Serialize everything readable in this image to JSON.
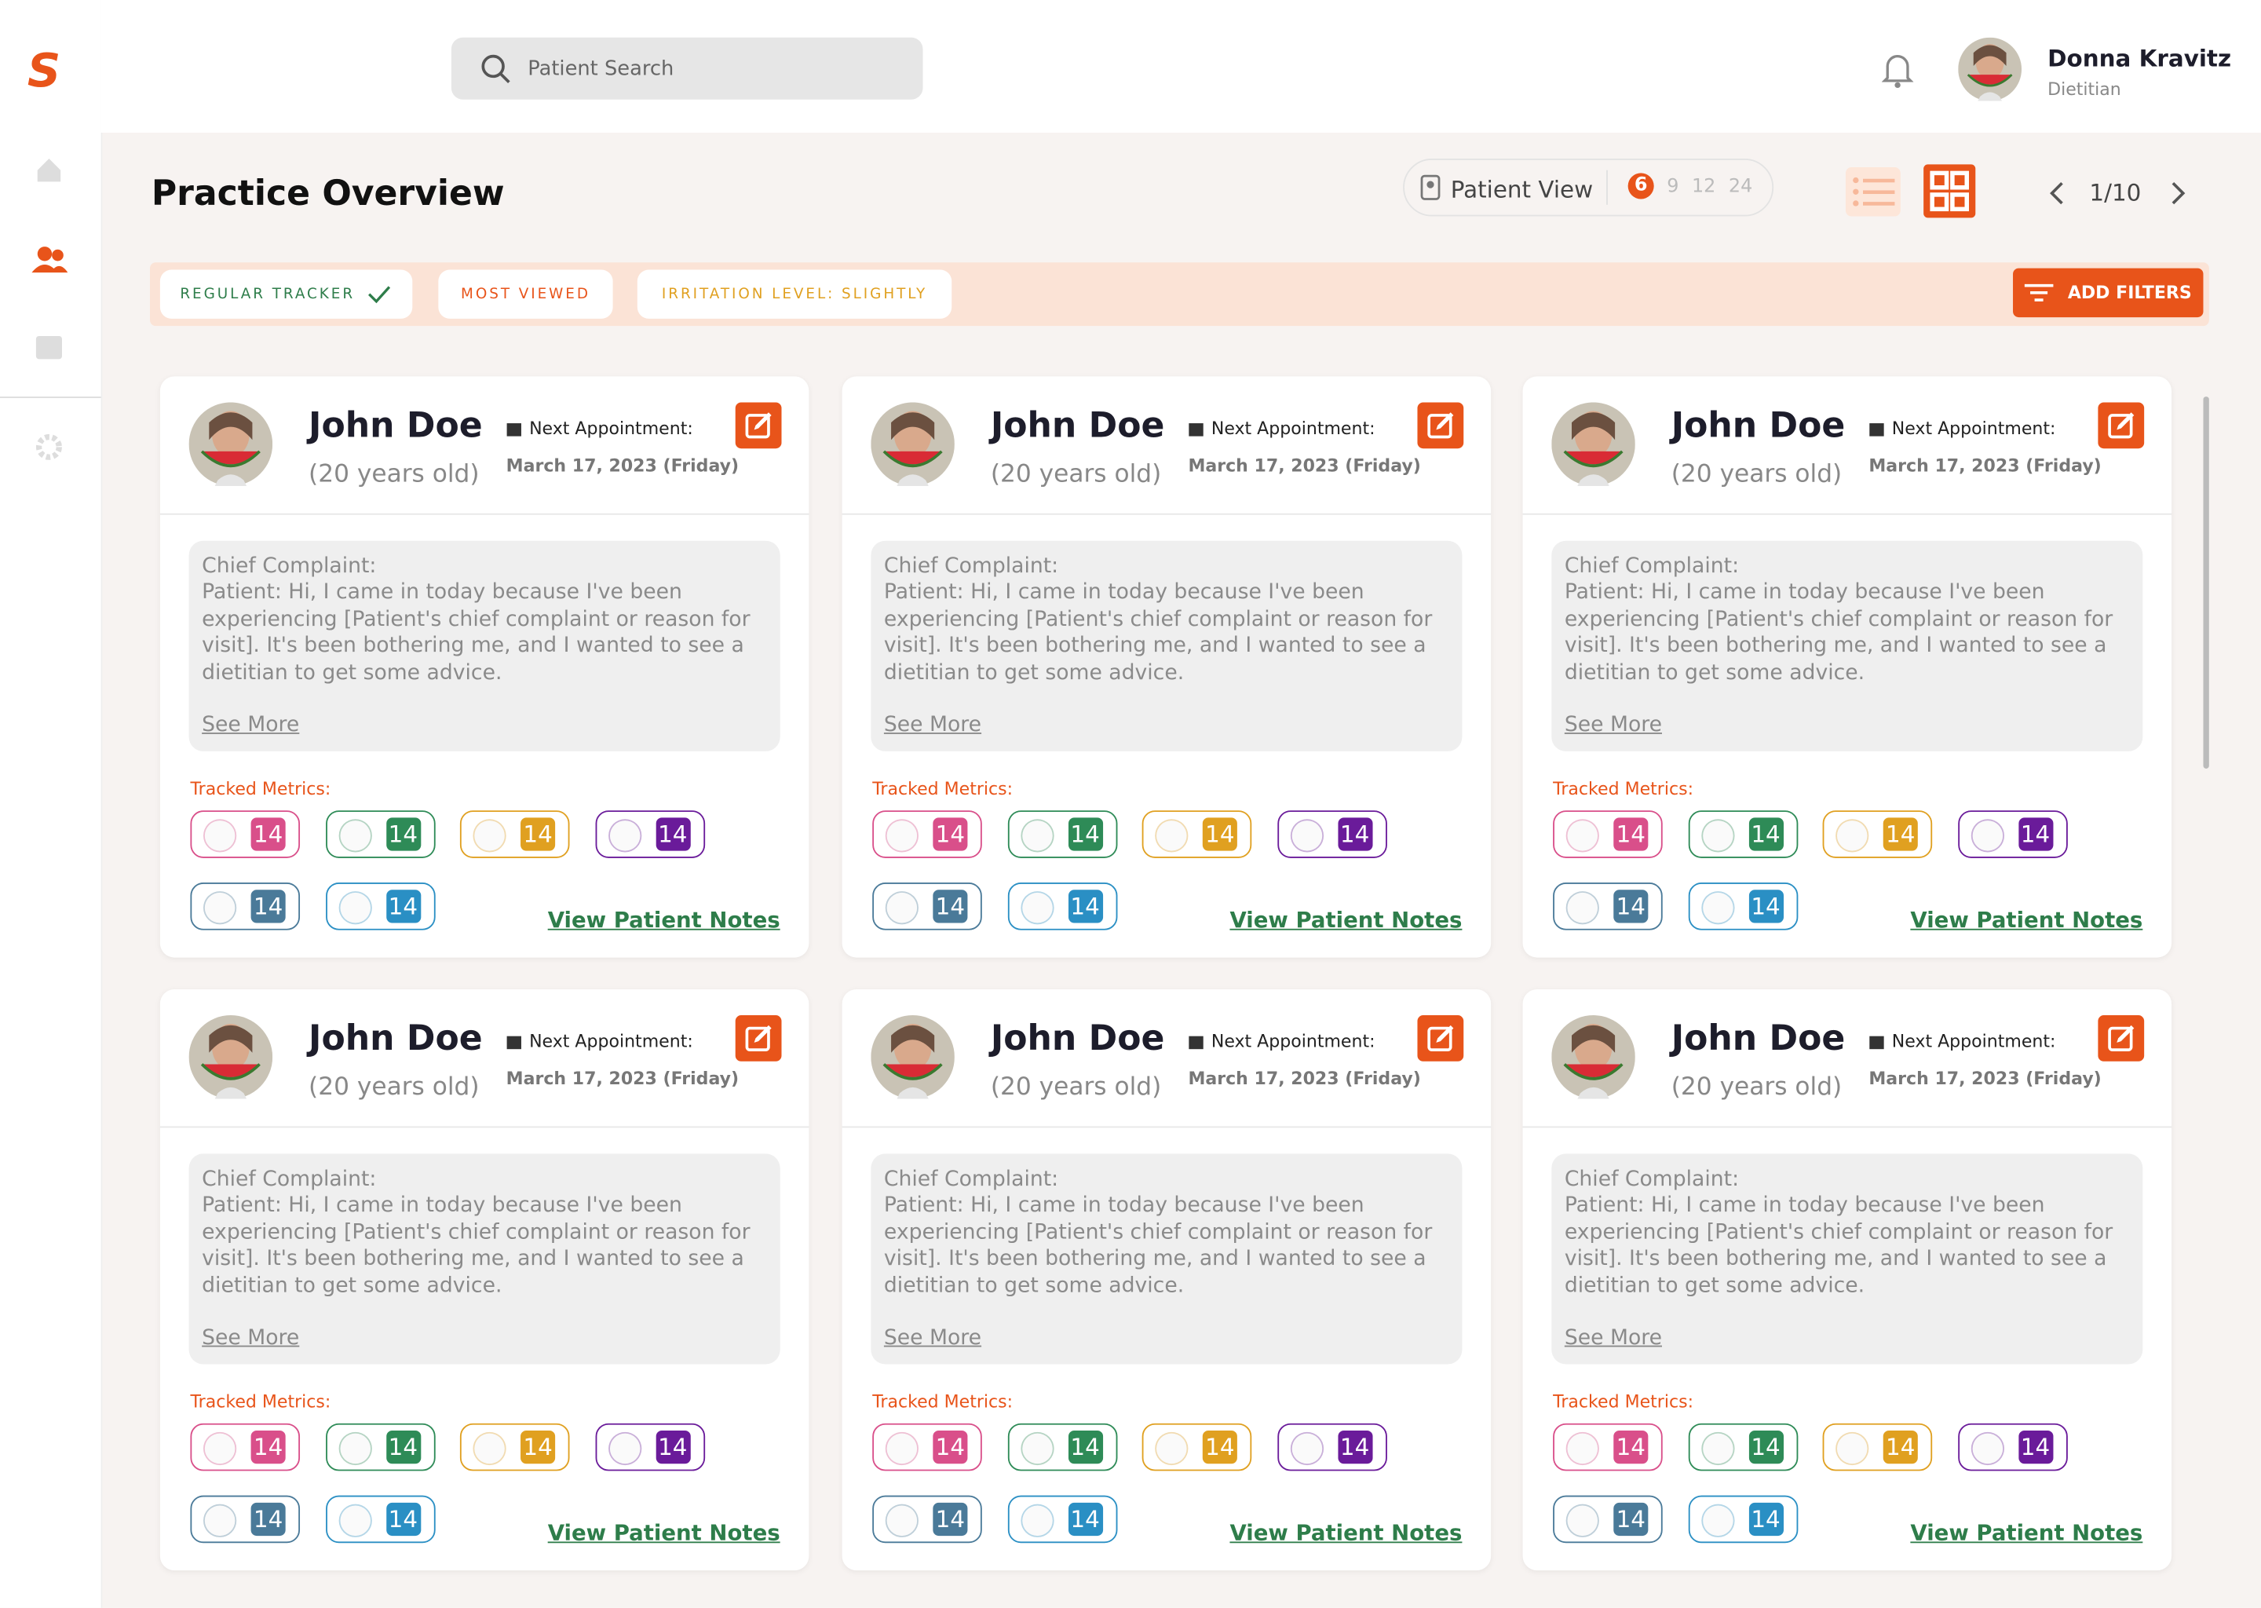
{
  "app": {
    "logo": "S",
    "search_placeholder": "Patient Search",
    "user": {
      "name": "Donna Kravitz",
      "role": "Dietitian"
    }
  },
  "header": {
    "title": "Practice Overview",
    "view_label": "Patient View",
    "page_sizes": [
      6,
      9,
      12,
      24
    ],
    "pagination": "1/10"
  },
  "filters": {
    "chips": [
      "REGULAR TRACKER",
      "MOST VIEWED",
      "IRRITATION LEVEL: SLIGHTLY"
    ],
    "button": "ADD FILTERS"
  },
  "cards": [
    {
      "name": "John Doe",
      "age": "(20 years old)",
      "appointment_label": "Next Appointment:",
      "appointment_date": "March 17, 2023 (Friday)",
      "complaint_label": "Chief Complaint:",
      "complaint": "Patient: Hi, I came in today because I've been experiencing [Patient's chief complaint or reason for visit]. It's been bothering me, and I wanted to see a dietitian to get some advice.",
      "see_more": "See More",
      "metrics_label": "Tracked Metrics:",
      "metrics": [
        14,
        14,
        14,
        14,
        14,
        14
      ],
      "notes_link": "View Patient Notes"
    },
    {
      "name": "John Doe",
      "age": "(20 years old)",
      "appointment_label": "Next Appointment:",
      "appointment_date": "March 17, 2023 (Friday)",
      "complaint_label": "Chief Complaint:",
      "complaint": "Patient: Hi, I came in today because I've been experiencing [Patient's chief complaint or reason for visit]. It's been bothering me, and I wanted to see a dietitian to get some advice.",
      "see_more": "See More",
      "metrics_label": "Tracked Metrics:",
      "metrics": [
        14,
        14,
        14,
        14,
        14,
        14
      ],
      "notes_link": "View Patient Notes"
    },
    {
      "name": "John Doe",
      "age": "(20 years old)",
      "appointment_label": "Next Appointment:",
      "appointment_date": "March 17, 2023 (Friday)",
      "complaint_label": "Chief Complaint:",
      "complaint": "Patient: Hi, I came in today because I've been experiencing [Patient's chief complaint or reason for visit]. It's been bothering me, and I wanted to see a dietitian to get some advice.",
      "see_more": "See More",
      "metrics_label": "Tracked Metrics:",
      "metrics": [
        14,
        14,
        14,
        14,
        14,
        14
      ],
      "notes_link": "View Patient Notes"
    },
    {
      "name": "John Doe",
      "age": "(20 years old)",
      "appointment_label": "Next Appointment:",
      "appointment_date": "March 17, 2023 (Friday)",
      "complaint_label": "Chief Complaint:",
      "complaint": "Patient: Hi, I came in today because I've been experiencing [Patient's chief complaint or reason for visit]. It's been bothering me, and I wanted to see a dietitian to get some advice.",
      "see_more": "See More",
      "metrics_label": "Tracked Metrics:",
      "metrics": [
        14,
        14,
        14,
        14,
        14,
        14
      ],
      "notes_link": "View Patient Notes"
    },
    {
      "name": "John Doe",
      "age": "(20 years old)",
      "appointment_label": "Next Appointment:",
      "appointment_date": "March 17, 2023 (Friday)",
      "complaint_label": "Chief Complaint:",
      "complaint": "Patient: Hi, I came in today because I've been experiencing [Patient's chief complaint or reason for visit]. It's been bothering me, and I wanted to see a dietitian to get some advice.",
      "see_more": "See More",
      "metrics_label": "Tracked Metrics:",
      "metrics": [
        14,
        14,
        14,
        14,
        14,
        14
      ],
      "notes_link": "View Patient Notes"
    },
    {
      "name": "John Doe",
      "age": "(20 years old)",
      "appointment_label": "Next Appointment:",
      "appointment_date": "March 17, 2023 (Friday)",
      "complaint_label": "Chief Complaint:",
      "complaint": "Patient: Hi, I came in today because I've been experiencing [Patient's chief complaint or reason for visit]. It's been bothering me, and I wanted to see a dietitian to get some advice.",
      "see_more": "See More",
      "metrics_label": "Tracked Metrics:",
      "metrics": [
        14,
        14,
        14,
        14,
        14,
        14
      ],
      "notes_link": "View Patient Notes"
    }
  ]
}
